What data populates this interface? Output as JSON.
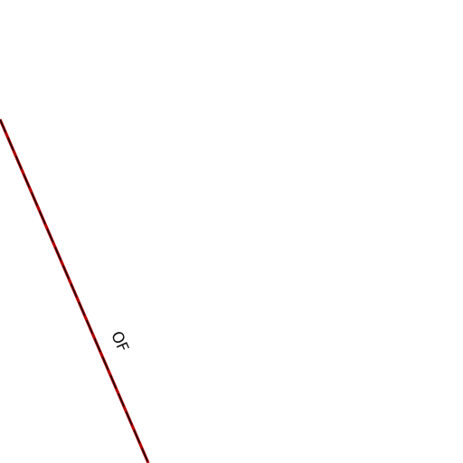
{
  "map": {
    "background_color": "#ffffff",
    "boundary": {
      "label": "OF",
      "line_color": "#b30000",
      "dash_color": "#111111"
    }
  }
}
